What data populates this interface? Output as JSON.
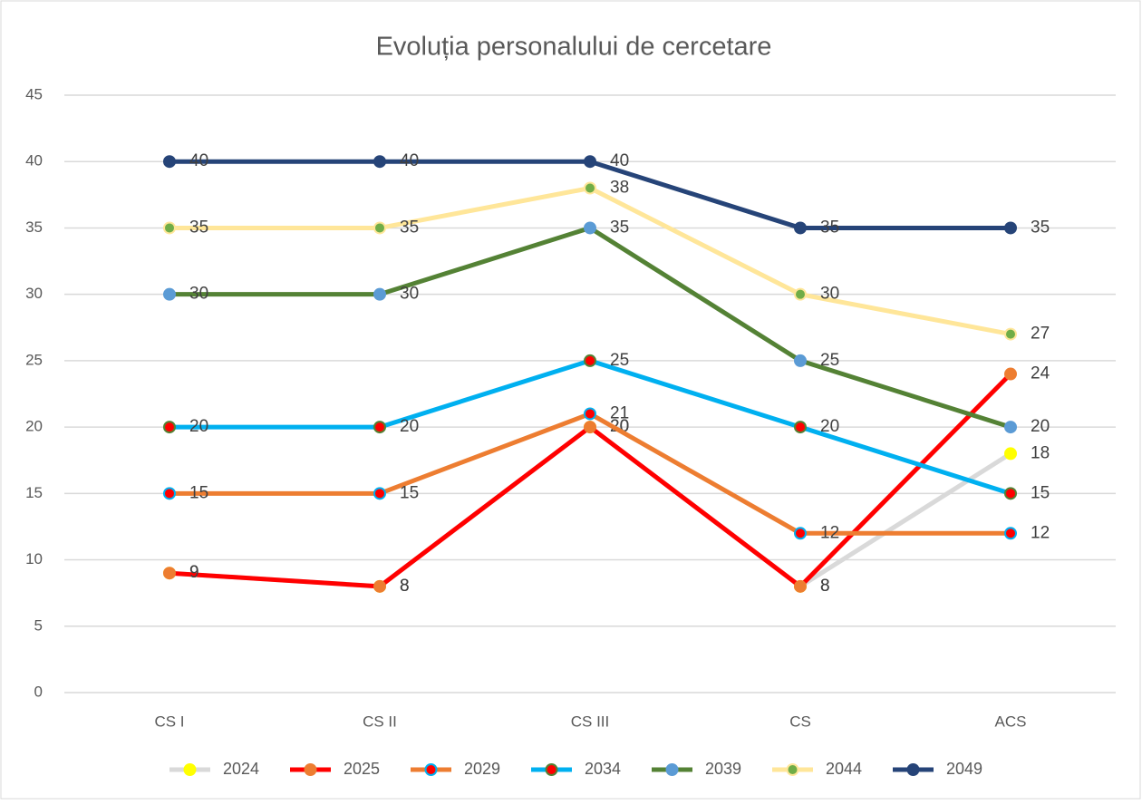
{
  "chart_data": {
    "type": "line",
    "title": "Evoluția personalului de cercetare",
    "categories": [
      "CS I",
      "CS II",
      "CS III",
      "CS",
      "ACS"
    ],
    "series": [
      {
        "name": "2024",
        "color": "#d9d9d9",
        "marker_color": "#ffff00",
        "marker_edge": "#ffff00",
        "values": [
          9,
          8,
          20,
          8,
          18
        ]
      },
      {
        "name": "2025",
        "color": "#ff0000",
        "marker_color": "#ed7d31",
        "marker_edge": "#ed7d31",
        "values": [
          9,
          8,
          20,
          8,
          24
        ]
      },
      {
        "name": "2029",
        "color": "#ed7d31",
        "marker_color": "#ff0000",
        "marker_edge": "#00b0f0",
        "values": [
          15,
          15,
          21,
          12,
          12
        ]
      },
      {
        "name": "2034",
        "color": "#00b0f0",
        "marker_color": "#ff0000",
        "marker_edge": "#548235",
        "values": [
          20,
          20,
          25,
          20,
          15
        ]
      },
      {
        "name": "2039",
        "color": "#548235",
        "marker_color": "#5b9bd5",
        "marker_edge": "#5b9bd5",
        "values": [
          30,
          30,
          35,
          25,
          20
        ]
      },
      {
        "name": "2044",
        "color": "#ffe699",
        "marker_color": "#70ad47",
        "marker_edge": "#ffe699",
        "values": [
          35,
          35,
          38,
          30,
          27
        ]
      },
      {
        "name": "2049",
        "color": "#264478",
        "marker_color": "#264478",
        "marker_edge": "#264478",
        "values": [
          40,
          40,
          40,
          35,
          35
        ]
      }
    ],
    "ylim": [
      0,
      45
    ],
    "yticks": [
      0,
      5,
      10,
      15,
      20,
      25,
      30,
      35,
      40,
      45
    ],
    "grid": true,
    "legend": "bottom",
    "data_labels": true
  }
}
